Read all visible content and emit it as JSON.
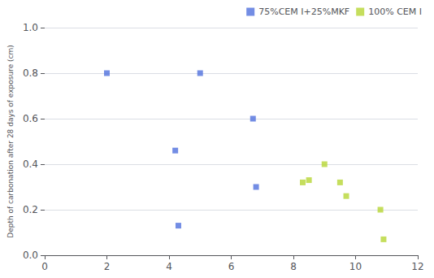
{
  "chart_data": {
    "type": "scatter",
    "ylabel": "Depth of carbonation after 28 days of exposure (cm)",
    "series": [
      {
        "name": "75%CEM I+25%MKF",
        "marker": "square",
        "x": [
          2.0,
          4.2,
          4.3,
          5.0,
          6.7,
          6.8
        ],
        "values": [
          0.8,
          0.46,
          0.13,
          0.8,
          0.6,
          0.3
        ]
      },
      {
        "name": "100% CEM I",
        "marker": "square",
        "x": [
          8.3,
          8.5,
          9.0,
          9.5,
          9.7,
          10.8,
          10.9
        ],
        "values": [
          0.32,
          0.33,
          0.4,
          0.32,
          0.26,
          0.2,
          0.07
        ]
      }
    ],
    "xlim": [
      0,
      12
    ],
    "xticks": [
      0,
      2,
      4,
      6,
      8,
      10,
      12
    ],
    "ylim": [
      0,
      1
    ],
    "yticks": [
      {
        "value": 0,
        "label": "0.0"
      },
      0.2,
      0.4,
      0.6,
      0.8,
      {
        "value": 1.0,
        "label": "1.0"
      }
    ],
    "grid": true,
    "legend": "upper right"
  }
}
